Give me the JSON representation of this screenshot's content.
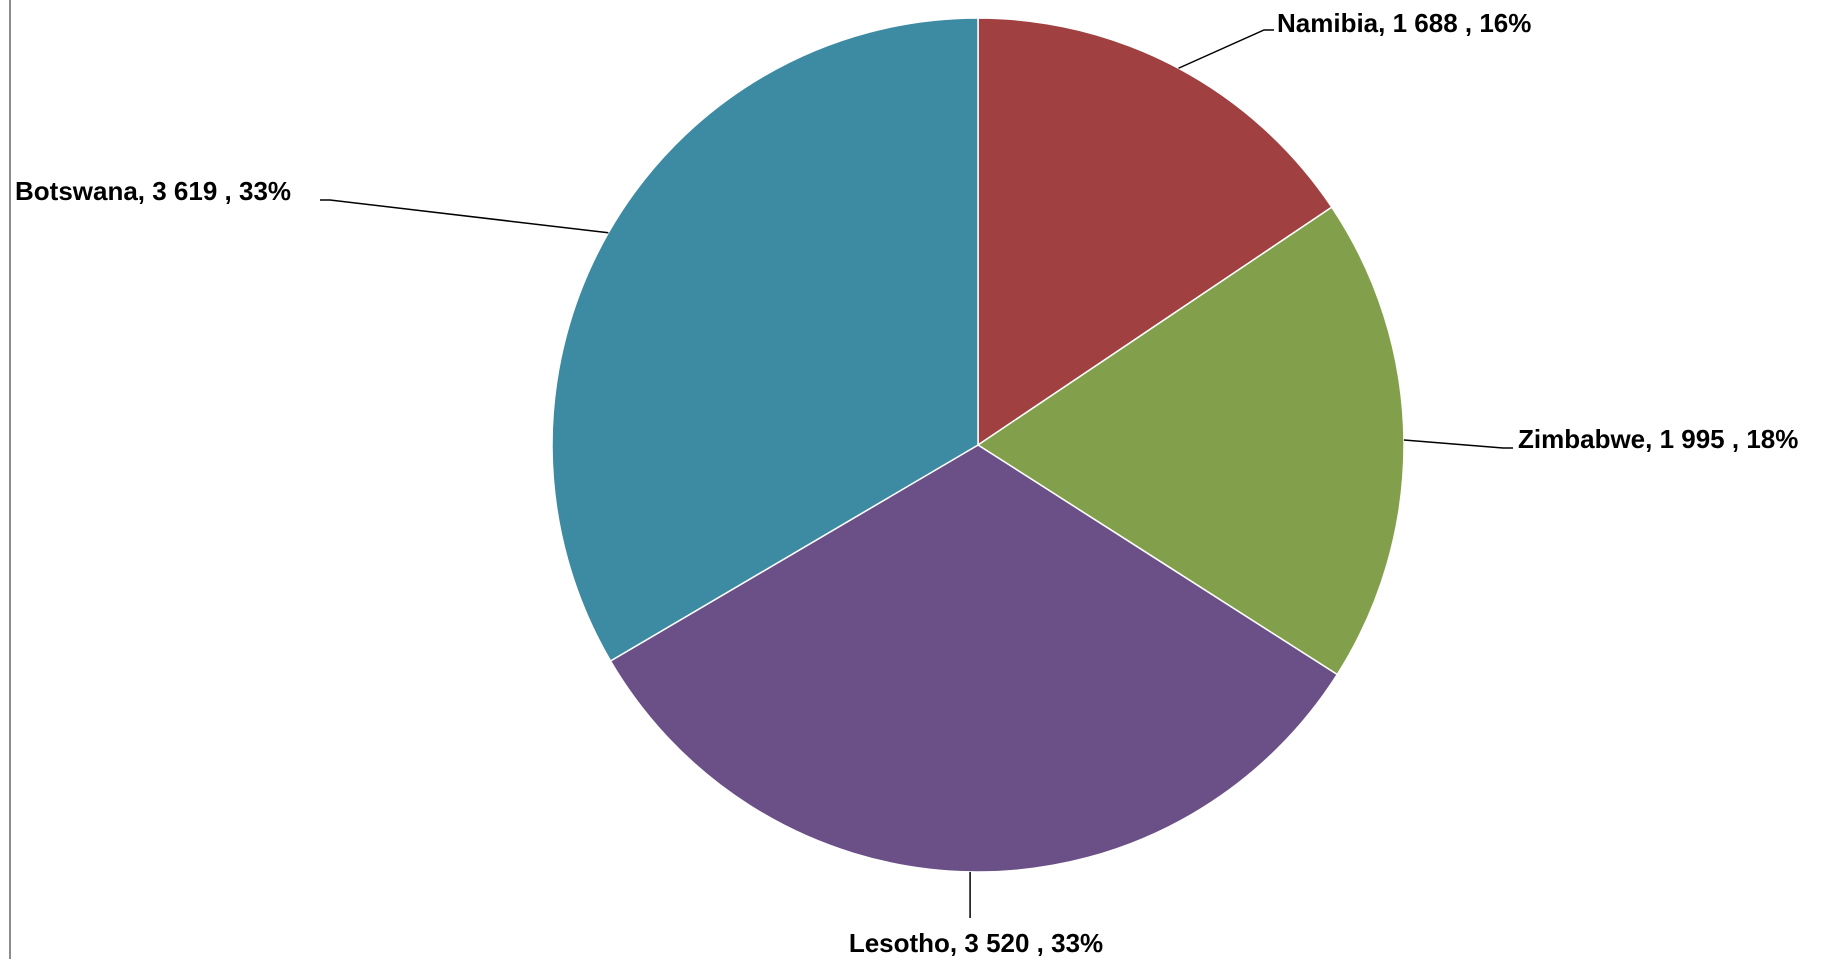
{
  "chart_data": {
    "type": "pie",
    "title": "",
    "slices": [
      {
        "name": "Namibia",
        "value": 1688,
        "value_label": "1 688",
        "percent_label": "16%",
        "color": "#A04040"
      },
      {
        "name": "Zimbabwe",
        "value": 1995,
        "value_label": "1 995",
        "percent_label": "18%",
        "color": "#82A04B"
      },
      {
        "name": "Lesotho",
        "value": 3520,
        "value_label": "3 520",
        "percent_label": "33%",
        "color": "#6A5086"
      },
      {
        "name": "Botswana",
        "value": 3619,
        "value_label": "3 619",
        "percent_label": "33%",
        "color": "#3D8BA2"
      }
    ],
    "data_labels": [
      "Namibia,  1 688 , 16%",
      "Zimbabwe,  1 995 , 18%",
      "Lesotho,  3 520 , 33%",
      "Botswana,  3 619 , 33%"
    ],
    "legend": "none",
    "start_angle": "12-o'clock, clockwise"
  }
}
